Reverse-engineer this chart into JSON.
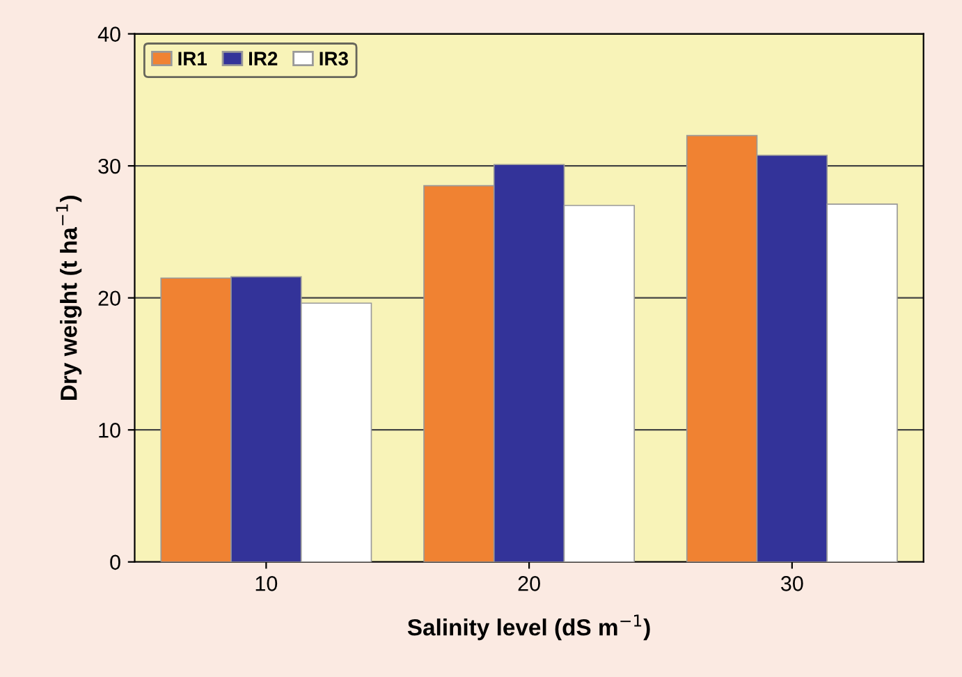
{
  "chart_data": {
    "type": "bar",
    "xlabel": "Salinity level (dS m$^{−1}$)",
    "ylabel": "Dry weight (t ha$^{−1}$)",
    "categories": [
      "10",
      "20",
      "30"
    ],
    "series": [
      {
        "name": "IR1",
        "color": "#f08232",
        "values": [
          21.5,
          28.5,
          32.3
        ]
      },
      {
        "name": "IR2",
        "color": "#333399",
        "values": [
          21.6,
          30.1,
          30.8
        ]
      },
      {
        "name": "IR3",
        "color": "#ffffff",
        "values": [
          19.6,
          27.0,
          27.1
        ]
      }
    ],
    "ylim": [
      0,
      40
    ],
    "yticks": [
      0,
      10,
      20,
      30,
      40
    ],
    "grid": "y",
    "legend": "top left"
  }
}
